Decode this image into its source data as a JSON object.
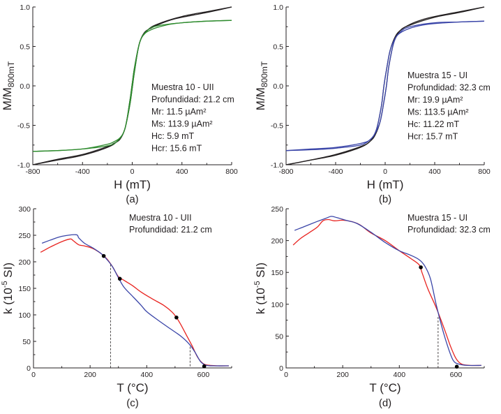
{
  "chart_data": [
    {
      "id": "a",
      "type": "line",
      "panel_label": "(a)",
      "xlabel": "H (mT)",
      "ylabel_main": "M/M",
      "ylabel_sub": "800mT",
      "xlim": [
        -800,
        800
      ],
      "ylim": [
        -1.0,
        1.0
      ],
      "xticks": [
        -800,
        -400,
        0,
        400,
        800
      ],
      "xtick_labels": [
        "-800",
        "-400",
        "0",
        "400",
        "800"
      ],
      "yticks": [
        -1.0,
        -0.5,
        0.0,
        0.5,
        1.0
      ],
      "ytick_labels": [
        "-1.0",
        "-0.5",
        "0.0",
        "0.5",
        "1.0"
      ],
      "annotation": [
        "Muestra 10 - UII",
        "Profundidad: 21.2 cm",
        "Mr: 11.5 µAm²",
        "Ms: 113.9 µAm²",
        "Hc: 5.9 mT",
        "Hcr: 15.6 mT"
      ],
      "series": [
        {
          "name": "raw-loop",
          "color": "#231f20",
          "upper": {
            "x": [
              -800,
              -600,
              -400,
              -200,
              -120,
              -60,
              -20,
              0,
              20,
              60,
              100,
              150,
              200,
              300,
              400,
              600,
              800
            ],
            "y": [
              -1.0,
              -0.94,
              -0.88,
              -0.78,
              -0.7,
              -0.55,
              -0.2,
              0.03,
              0.25,
              0.55,
              0.68,
              0.73,
              0.77,
              0.83,
              0.87,
              0.93,
              1.0
            ]
          },
          "lower": {
            "x": [
              -800,
              -600,
              -400,
              -200,
              -150,
              -100,
              -60,
              -20,
              0,
              20,
              60,
              120,
              200,
              400,
              600,
              800
            ],
            "y": [
              -1.0,
              -0.93,
              -0.87,
              -0.77,
              -0.73,
              -0.68,
              -0.55,
              -0.25,
              -0.03,
              0.2,
              0.55,
              0.7,
              0.78,
              0.88,
              0.94,
              1.0
            ]
          }
        },
        {
          "name": "corrected-loop",
          "color": "#2e8b2e",
          "upper": {
            "x": [
              -800,
              -600,
              -400,
              -200,
              -120,
              -60,
              -20,
              0,
              20,
              60,
              100,
              150,
              200,
              300,
              400,
              600,
              800
            ],
            "y": [
              -0.83,
              -0.82,
              -0.8,
              -0.76,
              -0.7,
              -0.55,
              -0.2,
              0.03,
              0.25,
              0.55,
              0.66,
              0.71,
              0.74,
              0.78,
              0.8,
              0.82,
              0.83
            ]
          },
          "lower": {
            "x": [
              -800,
              -600,
              -400,
              -200,
              -150,
              -100,
              -60,
              -20,
              0,
              20,
              60,
              120,
              200,
              400,
              600,
              800
            ],
            "y": [
              -0.83,
              -0.82,
              -0.8,
              -0.74,
              -0.71,
              -0.66,
              -0.55,
              -0.25,
              -0.03,
              0.2,
              0.55,
              0.7,
              0.76,
              0.8,
              0.82,
              0.83
            ]
          }
        }
      ]
    },
    {
      "id": "b",
      "type": "line",
      "panel_label": "(b)",
      "xlabel": "H (mT)",
      "ylabel_main": "M/M",
      "ylabel_sub": "800mT",
      "xlim": [
        -800,
        800
      ],
      "ylim": [
        -1.0,
        1.0
      ],
      "xticks": [
        -800,
        -400,
        0,
        400,
        800
      ],
      "xtick_labels": [
        "-800",
        "-400",
        "0",
        "400",
        "800"
      ],
      "yticks": [
        -1.0,
        -0.5,
        0.0,
        0.5,
        1.0
      ],
      "ytick_labels": [
        "-1.0",
        "-0.5",
        "0.0",
        "0.5",
        "1.0"
      ],
      "annotation": [
        "Muestra 15 - UI",
        "Profundidad: 32.3 cm",
        "Mr: 19.9 µAm²",
        "Ms: 113.5 µAm²",
        "Hc: 11.22 mT",
        "Hcr: 15.7 mT"
      ],
      "series": [
        {
          "name": "raw-loop",
          "color": "#231f20",
          "upper": {
            "x": [
              -800,
              -600,
              -400,
              -200,
              -120,
              -70,
              -30,
              -10,
              10,
              40,
              80,
              120,
              200,
              300,
              400,
              600,
              800
            ],
            "y": [
              -1.0,
              -0.94,
              -0.87,
              -0.77,
              -0.7,
              -0.55,
              -0.25,
              0.0,
              0.2,
              0.45,
              0.62,
              0.7,
              0.78,
              0.84,
              0.88,
              0.94,
              1.0
            ]
          },
          "lower": {
            "x": [
              -800,
              -600,
              -400,
              -200,
              -120,
              -80,
              -40,
              -10,
              10,
              30,
              70,
              120,
              200,
              400,
              600,
              800
            ],
            "y": [
              -1.0,
              -0.94,
              -0.88,
              -0.78,
              -0.7,
              -0.62,
              -0.45,
              -0.2,
              0.0,
              0.25,
              0.55,
              0.7,
              0.77,
              0.87,
              0.93,
              1.0
            ]
          }
        },
        {
          "name": "corrected-loop",
          "color": "#3a45a8",
          "upper": {
            "x": [
              -800,
              -600,
              -400,
              -200,
              -120,
              -70,
              -30,
              -10,
              10,
              40,
              80,
              120,
              200,
              300,
              400,
              600,
              800
            ],
            "y": [
              -0.82,
              -0.8,
              -0.78,
              -0.73,
              -0.68,
              -0.55,
              -0.25,
              0.0,
              0.2,
              0.45,
              0.6,
              0.67,
              0.73,
              0.77,
              0.79,
              0.81,
              0.82
            ]
          },
          "lower": {
            "x": [
              -800,
              -600,
              -400,
              -200,
              -120,
              -80,
              -40,
              -10,
              10,
              30,
              70,
              120,
              200,
              400,
              600,
              800
            ],
            "y": [
              -0.82,
              -0.81,
              -0.79,
              -0.75,
              -0.68,
              -0.6,
              -0.45,
              -0.2,
              0.0,
              0.25,
              0.55,
              0.68,
              0.75,
              0.8,
              0.81,
              0.82
            ]
          }
        }
      ]
    },
    {
      "id": "c",
      "type": "line",
      "panel_label": "(c)",
      "xlabel": "T (°C)",
      "ylabel_main": "k (10",
      "ylabel_sup": "-5",
      "ylabel_end": " SI)",
      "xlim": [
        0,
        700
      ],
      "ylim": [
        0,
        300
      ],
      "xticks": [
        0,
        200,
        400,
        600
      ],
      "xtick_labels": [
        "0",
        "200",
        "400",
        "600"
      ],
      "yticks": [
        0,
        50,
        100,
        150,
        200,
        250,
        300
      ],
      "ytick_labels": [
        "0",
        "50",
        "100",
        "150",
        "200",
        "250",
        "300"
      ],
      "annotation": [
        "Muestra 10 - UII",
        "Profundidad: 21.2 cm"
      ],
      "series": [
        {
          "name": "heating",
          "color": "#e8231f",
          "x": [
            25,
            60,
            100,
            130,
            140,
            160,
            180,
            210,
            240,
            260,
            280,
            300,
            320,
            350,
            380,
            420,
            460,
            490,
            505,
            520,
            540,
            560,
            580,
            600,
            620,
            650,
            690
          ],
          "y": [
            218,
            228,
            238,
            243,
            240,
            232,
            230,
            225,
            215,
            205,
            190,
            172,
            165,
            155,
            143,
            130,
            118,
            105,
            95,
            82,
            62,
            42,
            20,
            8,
            5,
            4,
            4
          ]
        },
        {
          "name": "cooling",
          "color": "#3a45a8",
          "x": [
            30,
            60,
            100,
            150,
            160,
            180,
            210,
            240,
            260,
            280,
            300,
            320,
            350,
            380,
            400,
            440,
            480,
            520,
            550,
            570,
            590,
            610,
            640,
            690
          ],
          "y": [
            235,
            241,
            248,
            251,
            245,
            235,
            226,
            215,
            204,
            190,
            170,
            152,
            135,
            118,
            106,
            90,
            75,
            60,
            45,
            30,
            12,
            5,
            4,
            4
          ]
        }
      ],
      "markers": {
        "x": [
          248,
          305,
          505,
          603
        ],
        "y": [
          211,
          168,
          95,
          3
        ],
        "color": "#000000"
      },
      "dashed_lines": [
        {
          "x": 272,
          "y_top": 195
        },
        {
          "x": 553,
          "y_top": 40
        }
      ]
    },
    {
      "id": "d",
      "type": "line",
      "panel_label": "(d)",
      "xlabel": "T (°C)",
      "ylabel_main": "k (10",
      "ylabel_sup": "-5",
      "ylabel_end": " SI)",
      "xlim": [
        0,
        700
      ],
      "ylim": [
        0,
        250
      ],
      "xticks": [
        0,
        200,
        400,
        600
      ],
      "xtick_labels": [
        "0",
        "200",
        "400",
        "600"
      ],
      "yticks": [
        0,
        50,
        100,
        150,
        200,
        250
      ],
      "ytick_labels": [
        "0",
        "50",
        "100",
        "150",
        "200",
        "250"
      ],
      "annotation": [
        "Muestra 15 - UI",
        "Profundidad: 32.3 cm"
      ],
      "series": [
        {
          "name": "heating",
          "color": "#e8231f",
          "x": [
            25,
            50,
            80,
            110,
            130,
            150,
            170,
            200,
            230,
            260,
            300,
            350,
            400,
            440,
            470,
            480,
            500,
            530,
            560,
            580,
            600,
            620,
            650,
            690
          ],
          "y": [
            193,
            203,
            212,
            221,
            231,
            233,
            231,
            232,
            230,
            225,
            212,
            200,
            184,
            172,
            162,
            150,
            125,
            95,
            60,
            35,
            15,
            6,
            4,
            4
          ]
        },
        {
          "name": "cooling",
          "color": "#3a45a8",
          "x": [
            30,
            70,
            110,
            140,
            160,
            180,
            210,
            250,
            300,
            350,
            400,
            440,
            470,
            490,
            510,
            530,
            550,
            570,
            590,
            610,
            640,
            690
          ],
          "y": [
            216,
            223,
            230,
            235,
            238,
            236,
            232,
            227,
            213,
            197,
            184,
            177,
            170,
            160,
            140,
            100,
            65,
            35,
            12,
            6,
            4,
            4
          ]
        }
      ],
      "markers": {
        "x": [
          476,
          603
        ],
        "y": [
          158,
          2
        ],
        "color": "#000000"
      },
      "dashed_lines": [
        {
          "x": 537,
          "y_top": 80
        }
      ]
    }
  ]
}
